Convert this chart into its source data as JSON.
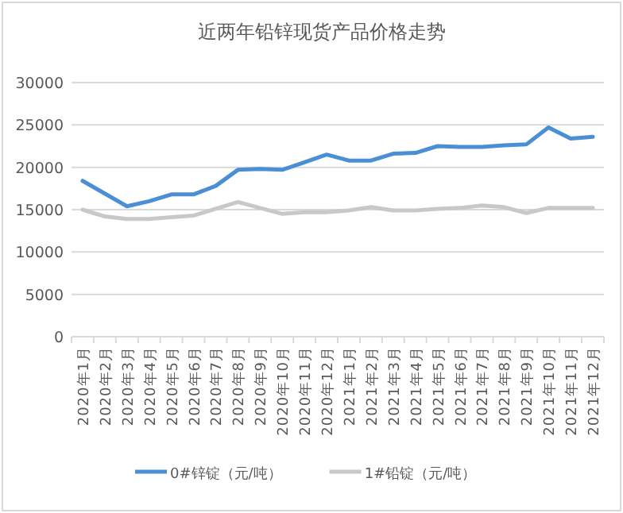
{
  "chart_data": {
    "type": "line",
    "title": "近两年铅锌现货产品价格走势",
    "categories": [
      "2020年1月",
      "2020年2月",
      "2020年3月",
      "2020年4月",
      "2020年5月",
      "2020年6月",
      "2020年7月",
      "2020年8月",
      "2020年9月",
      "2020年10月",
      "2020年11月",
      "2020年12月",
      "2021年1月",
      "2021年2月",
      "2021年3月",
      "2021年4月",
      "2021年5月",
      "2021年6月",
      "2021年7月",
      "2021年8月",
      "2021年9月",
      "2021年10月",
      "2021年11月",
      "2021年12月"
    ],
    "series": [
      {
        "name": "0#锌锭（元/吨）",
        "color": "#4a8fd6",
        "values": [
          18400,
          16900,
          15400,
          16000,
          16800,
          16800,
          17800,
          19700,
          19800,
          19700,
          20600,
          21500,
          20800,
          20800,
          21600,
          21700,
          22500,
          22400,
          22400,
          22600,
          22700,
          24700,
          23400,
          23600
        ]
      },
      {
        "name": "1#铅锭（元/吨）",
        "color": "#c8c8c8",
        "values": [
          15000,
          14200,
          13900,
          13900,
          14100,
          14300,
          15100,
          15900,
          15200,
          14500,
          14700,
          14700,
          14900,
          15300,
          14900,
          14900,
          15100,
          15200,
          15500,
          15300,
          14600,
          15200,
          15200,
          15200
        ]
      }
    ],
    "ylim": [
      0,
      30000
    ],
    "yticks": [
      0,
      5000,
      10000,
      15000,
      20000,
      25000,
      30000
    ],
    "grid": "y",
    "legend": "bottom",
    "marker": "none",
    "line_style": "solid"
  }
}
